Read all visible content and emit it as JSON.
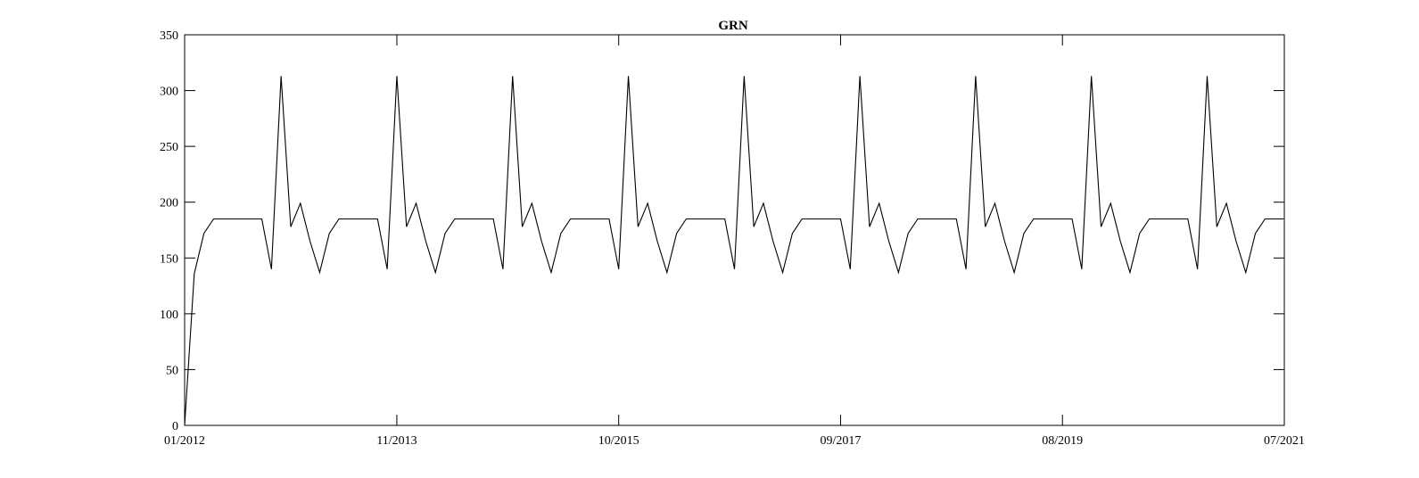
{
  "chart_data": {
    "type": "line",
    "title": "GRN",
    "xlabel": "",
    "ylabel": "",
    "ylim": [
      0,
      350
    ],
    "yticks": [
      0,
      50,
      100,
      150,
      200,
      250,
      300,
      350
    ],
    "xlim": [
      "2012-01",
      "2021-07"
    ],
    "xticks": [
      "01/2012",
      "11/2013",
      "10/2015",
      "09/2017",
      "08/2019",
      "07/2021"
    ],
    "grid": false,
    "legend": "none",
    "line_color": "#000000",
    "series": [
      {
        "x": [
          "2012-01",
          "2012-02",
          "2012-03",
          "2012-04",
          "2012-05",
          "2012-06",
          "2012-07",
          "2012-08",
          "2012-09",
          "2012-10",
          "2012-11",
          "2012-12",
          "2013-01",
          "2013-02",
          "2013-03",
          "2013-04",
          "2013-05",
          "2013-06",
          "2013-07",
          "2013-08",
          "2013-09",
          "2013-10",
          "2013-11",
          "2013-12",
          "2014-01",
          "2014-02",
          "2014-03",
          "2014-04",
          "2014-05",
          "2014-06",
          "2014-07",
          "2014-08",
          "2014-09",
          "2014-10",
          "2014-11",
          "2014-12",
          "2015-01",
          "2015-02",
          "2015-03",
          "2015-04",
          "2015-05",
          "2015-06",
          "2015-07",
          "2015-08",
          "2015-09",
          "2015-10",
          "2015-11",
          "2015-12",
          "2016-01",
          "2016-02",
          "2016-03",
          "2016-04",
          "2016-05",
          "2016-06",
          "2016-07",
          "2016-08",
          "2016-09",
          "2016-10",
          "2016-11",
          "2016-12",
          "2017-01",
          "2017-02",
          "2017-03",
          "2017-04",
          "2017-05",
          "2017-06",
          "2017-07",
          "2017-08",
          "2017-09",
          "2017-10",
          "2017-11",
          "2017-12",
          "2018-01",
          "2018-02",
          "2018-03",
          "2018-04",
          "2018-05",
          "2018-06",
          "2018-07",
          "2018-08",
          "2018-09",
          "2018-10",
          "2018-11",
          "2018-12",
          "2019-01",
          "2019-02",
          "2019-03",
          "2019-04",
          "2019-05",
          "2019-06",
          "2019-07",
          "2019-08",
          "2019-09",
          "2019-10",
          "2019-11",
          "2019-12",
          "2020-01",
          "2020-02",
          "2020-03",
          "2020-04",
          "2020-05",
          "2020-06",
          "2020-07",
          "2020-08",
          "2020-09",
          "2020-10",
          "2020-11",
          "2020-12",
          "2021-01",
          "2021-02",
          "2021-03",
          "2021-04",
          "2021-05",
          "2021-06",
          "2021-07"
        ],
        "values": [
          0,
          136,
          172,
          185,
          185,
          185,
          185,
          185,
          185,
          140,
          313,
          178,
          199,
          165,
          137,
          172,
          185,
          185,
          185,
          185,
          185,
          140,
          313,
          178,
          199,
          165,
          137,
          172,
          185,
          185,
          185,
          185,
          185,
          140,
          313,
          178,
          199,
          165,
          137,
          172,
          185,
          185,
          185,
          185,
          185,
          140,
          313,
          178,
          199,
          165,
          137,
          172,
          185,
          185,
          185,
          185,
          185,
          140,
          313,
          178,
          199,
          165,
          137,
          172,
          185,
          185,
          185,
          185,
          185,
          140,
          313,
          178,
          199,
          165,
          137,
          172,
          185,
          185,
          185,
          185,
          185,
          140,
          313,
          178,
          199,
          165,
          137,
          172,
          185,
          185,
          185,
          185,
          185,
          140,
          313,
          178,
          199,
          165,
          137,
          172,
          185,
          185,
          185,
          185,
          185,
          140,
          313,
          178,
          199,
          165,
          137,
          172,
          185,
          185,
          185
        ]
      }
    ]
  }
}
